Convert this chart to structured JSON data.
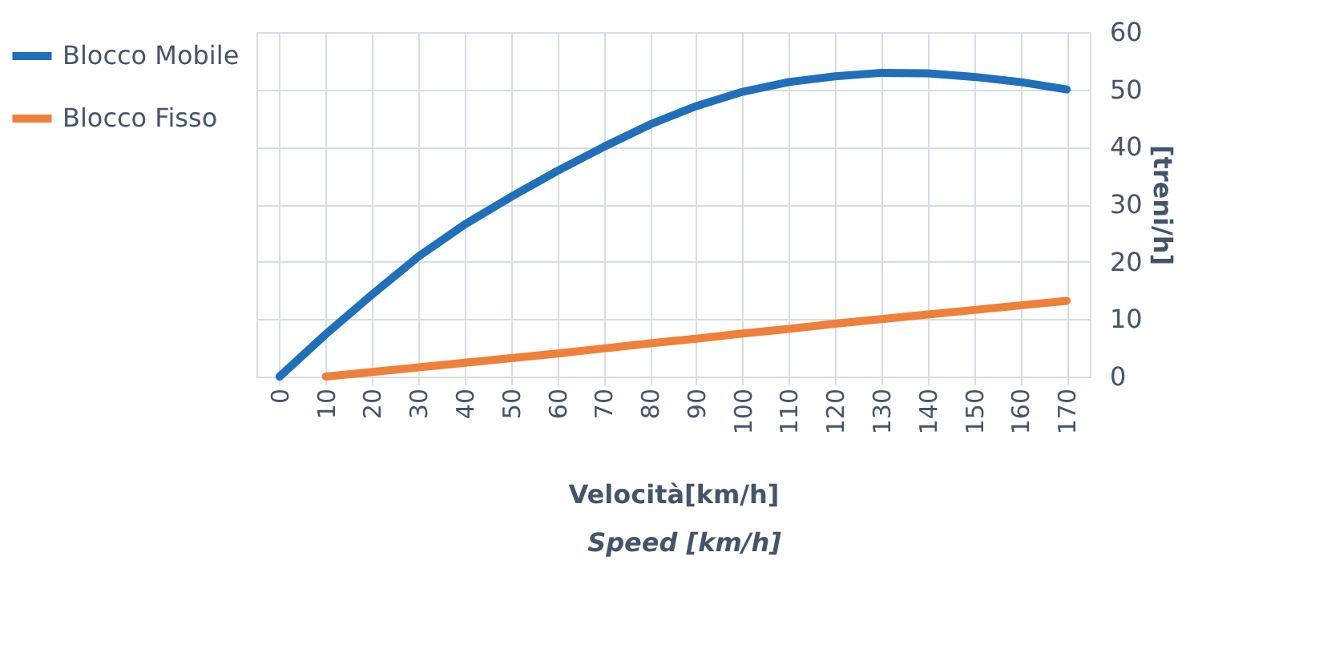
{
  "chart_data": {
    "type": "line",
    "xlabel": "Velocità[km/h]",
    "y2label": "[treni/h]",
    "annotations": [
      "Speed [km/h]"
    ],
    "xlim": [
      -5,
      175
    ],
    "xticks": [
      0,
      10,
      20,
      30,
      40,
      50,
      60,
      70,
      80,
      90,
      100,
      110,
      120,
      130,
      140,
      150,
      160,
      170
    ],
    "y2lim": [
      0,
      60
    ],
    "y2ticks": [
      0,
      10,
      20,
      30,
      40,
      50,
      60
    ],
    "grid": true,
    "legend": "left",
    "line_style": "solid",
    "marker": "none",
    "series": [
      {
        "name": "Blocco Mobile",
        "color": "#1f6fba",
        "axis": "y2",
        "x": [
          0,
          10,
          20,
          30,
          40,
          50,
          60,
          70,
          80,
          90,
          100,
          110,
          120,
          130,
          140,
          150,
          160,
          170
        ],
        "values": [
          0,
          7.4,
          14.3,
          20.9,
          26.5,
          31.3,
          35.8,
          40,
          43.9,
          47.1,
          49.6,
          51.3,
          52.3,
          52.9,
          52.8,
          52.2,
          51.3,
          50
        ]
      },
      {
        "name": "Blocco Fisso",
        "color": "#f07f3a",
        "axis": "y2",
        "x": [
          10,
          20,
          30,
          40,
          50,
          60,
          70,
          80,
          90,
          100,
          110,
          120,
          130,
          140,
          150,
          160,
          170
        ],
        "values": [
          0,
          0.8,
          1.6,
          2.4,
          3.2,
          4.0,
          4.9,
          5.8,
          6.6,
          7.5,
          8.3,
          9.2,
          10.0,
          10.8,
          11.6,
          12.4,
          13.2
        ]
      }
    ]
  }
}
